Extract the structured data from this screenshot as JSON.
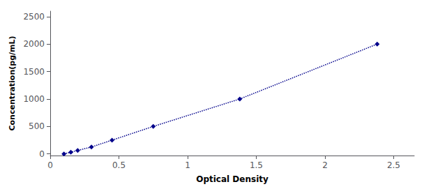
{
  "chart_data": {
    "type": "line",
    "x": [
      0.1,
      0.15,
      0.2,
      0.3,
      0.45,
      0.75,
      1.38,
      2.38
    ],
    "values": [
      0,
      31,
      63,
      125,
      250,
      500,
      1000,
      2000
    ],
    "color": "#00008B",
    "marker": "diamond",
    "line_style": "dotted",
    "xlabel": "Optical Density",
    "ylabel": "Concentration(pg/mL)",
    "xlim": [
      0.0,
      2.65
    ],
    "ylim": [
      -30,
      2600
    ],
    "xticks": [
      0,
      0.5,
      1,
      1.5,
      2,
      2.5
    ],
    "yticks": [
      0,
      500,
      1000,
      1500,
      2000,
      2500
    ],
    "grid": false
  }
}
